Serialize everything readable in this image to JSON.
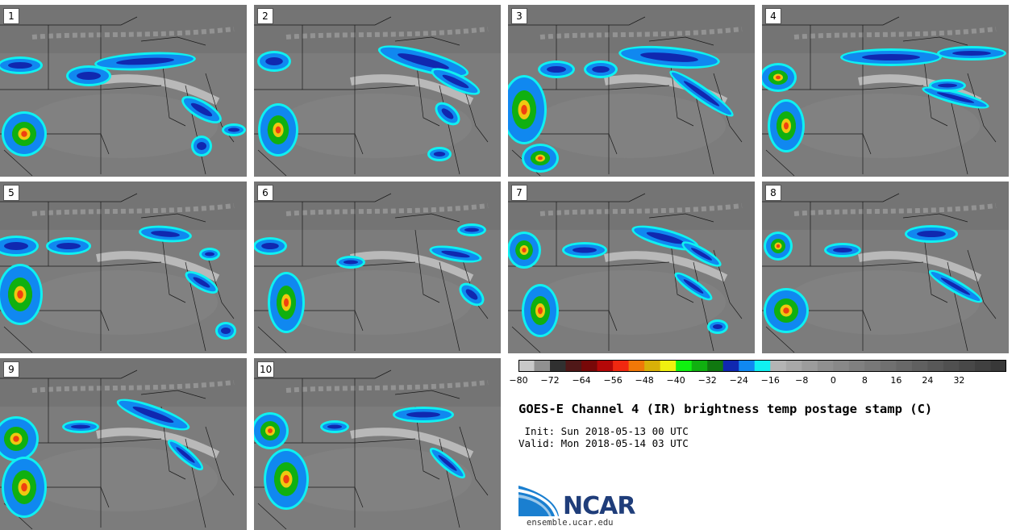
{
  "panels": [
    {
      "label": "1"
    },
    {
      "label": "2"
    },
    {
      "label": "3"
    },
    {
      "label": "4"
    },
    {
      "label": "5"
    },
    {
      "label": "6"
    },
    {
      "label": "7"
    },
    {
      "label": "8"
    },
    {
      "label": "9"
    },
    {
      "label": "10"
    }
  ],
  "colorbar": {
    "ticks": [
      "−80",
      "−72",
      "−64",
      "−56",
      "−48",
      "−40",
      "−32",
      "−24",
      "−16",
      "−8",
      "0",
      "8",
      "16",
      "24",
      "32"
    ],
    "colors": [
      "#c8c8c8",
      "#909090",
      "#303030",
      "#501818",
      "#780808",
      "#b40808",
      "#f02810",
      "#f07808",
      "#d8b008",
      "#f0f010",
      "#10f010",
      "#10b010",
      "#107810",
      "#1028b0",
      "#1088f0",
      "#10f0f0",
      "#b4b4b4",
      "#a8a8a8",
      "#9c9c9c",
      "#909090",
      "#888888",
      "#808080",
      "#787878",
      "#707070",
      "#686868",
      "#606060",
      "#585858",
      "#505050",
      "#484848",
      "#404040",
      "#383838"
    ]
  },
  "title": "GOES-E Channel 4 (IR) brightness temp postage stamp (C)",
  "init": " Init: Sun 2018-05-13 00 UTC",
  "valid": "Valid: Mon 2018-05-14 03 UTC",
  "logo": {
    "text": "NCAR",
    "website": "ensemble.ucar.edu",
    "brand_color": "#1f3d7a",
    "accent_color": "#1a7fd0"
  }
}
